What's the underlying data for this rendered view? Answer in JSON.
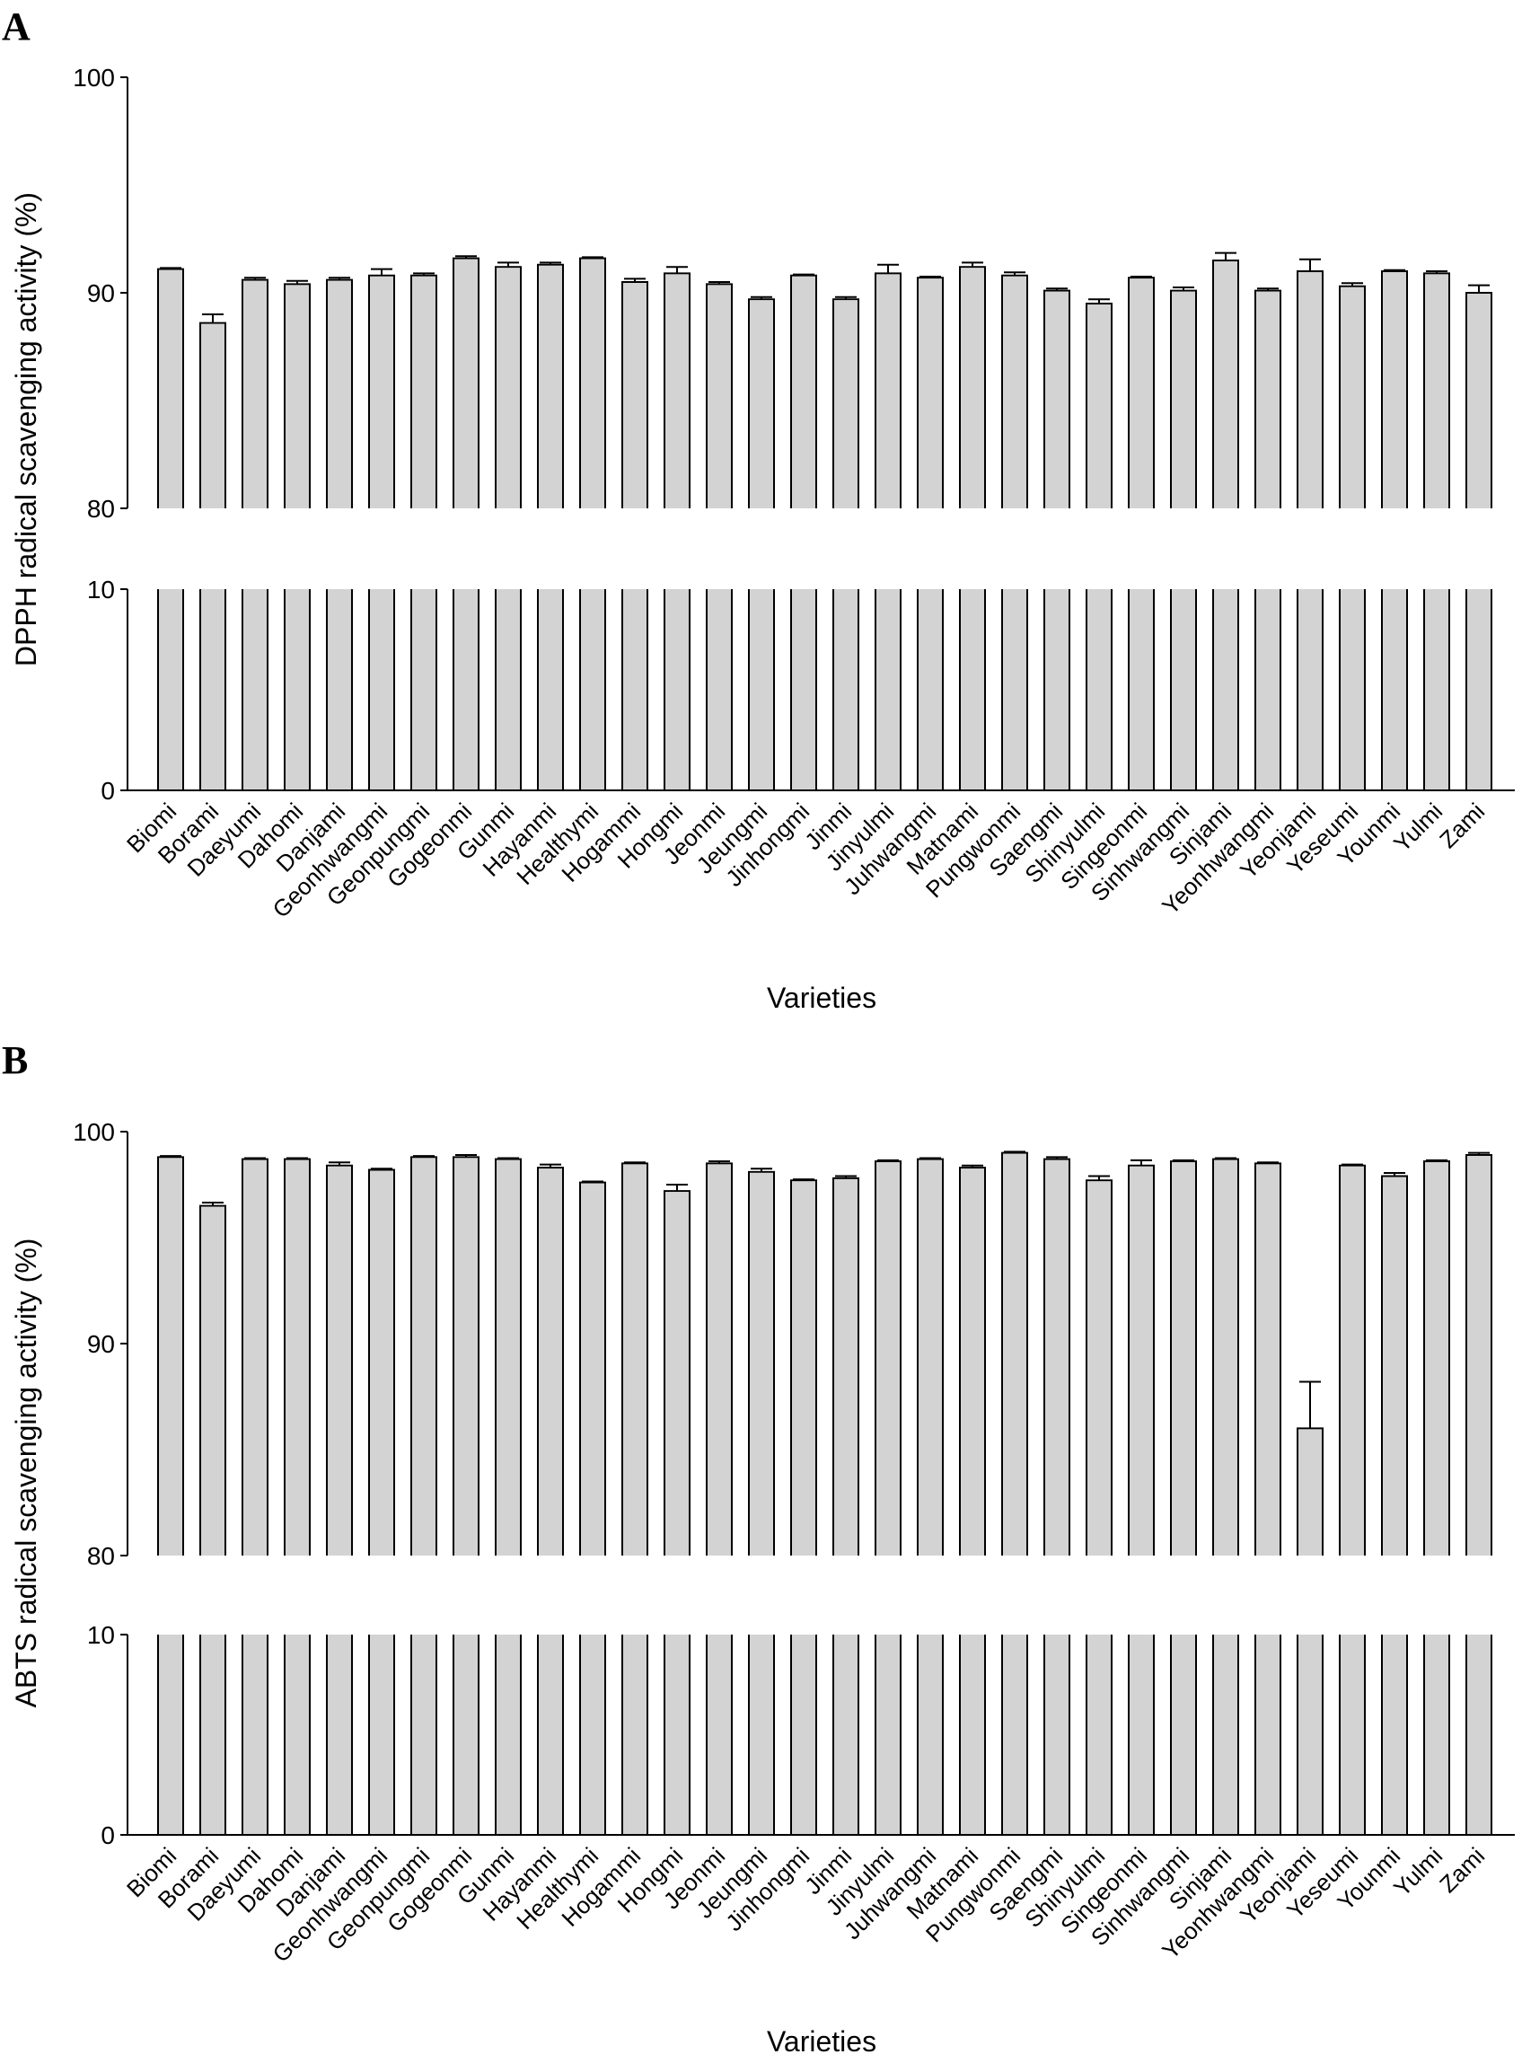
{
  "chart_data": [
    {
      "type": "bar",
      "panel": "A",
      "ylabel": "DPPH radical scavenging activity (%)",
      "xlabel": "Varieties",
      "axis_break": true,
      "upper_segment": {
        "ylim": [
          80,
          100
        ],
        "ticks": [
          "80",
          "90",
          "100"
        ]
      },
      "lower_segment": {
        "ylim": [
          0,
          10
        ],
        "ticks": [
          "0",
          "10"
        ]
      },
      "categories": [
        "Biomi",
        "Borami",
        "Daeyumi",
        "Dahomi",
        "Danjami",
        "Geonhwangmi",
        "Geonpungmi",
        "Gogeonmi",
        "Gunmi",
        "Hayanmi",
        "Healthymi",
        "Hogammi",
        "Hongmi",
        "Jeonmi",
        "Jeungmi",
        "Jinhongmi",
        "Jinmi",
        "Jinyulmi",
        "Juhwangmi",
        "Matnami",
        "Pungwonmi",
        "Saengmi",
        "Shinyulmi",
        "Singeonmi",
        "Sinhwangmi",
        "Sinjami",
        "Yeonhwangmi",
        "Yeonjami",
        "Yeseumi",
        "Younmi",
        "Yulmi",
        "Zami"
      ],
      "values": [
        91.1,
        88.6,
        90.6,
        90.4,
        90.6,
        90.8,
        90.8,
        91.6,
        91.2,
        91.3,
        91.6,
        90.5,
        90.9,
        90.4,
        89.7,
        90.8,
        89.7,
        90.9,
        90.7,
        91.2,
        90.8,
        90.1,
        89.5,
        90.7,
        90.1,
        91.5,
        90.1,
        91.0,
        90.3,
        91.0,
        90.9,
        90.0
      ],
      "errors": [
        0.05,
        0.4,
        0.1,
        0.15,
        0.1,
        0.3,
        0.1,
        0.1,
        0.2,
        0.1,
        0.05,
        0.15,
        0.3,
        0.1,
        0.1,
        0.05,
        0.1,
        0.4,
        0.05,
        0.2,
        0.15,
        0.1,
        0.2,
        0.05,
        0.15,
        0.35,
        0.1,
        0.55,
        0.15,
        0.05,
        0.1,
        0.35
      ]
    },
    {
      "type": "bar",
      "panel": "B",
      "ylabel": "ABTS radical scavenging activity (%)",
      "xlabel": "Varieties",
      "axis_break": true,
      "upper_segment": {
        "ylim": [
          80,
          100
        ],
        "ticks": [
          "80",
          "90",
          "100"
        ]
      },
      "lower_segment": {
        "ylim": [
          0,
          10
        ],
        "ticks": [
          "0",
          "10"
        ]
      },
      "categories": [
        "Biomi",
        "Borami",
        "Daeyumi",
        "Dahomi",
        "Danjami",
        "Geonhwangmi",
        "Geonpungmi",
        "Gogeonmi",
        "Gunmi",
        "Hayanmi",
        "Healthymi",
        "Hogammi",
        "Hongmi",
        "Jeonmi",
        "Jeungmi",
        "Jinhongmi",
        "Jinmi",
        "Jinyulmi",
        "Juhwangmi",
        "Matnami",
        "Pungwonmi",
        "Saengmi",
        "Shinyulmi",
        "Singeonmi",
        "Sinhwangmi",
        "Sinjami",
        "Yeonhwangmi",
        "Yeonjami",
        "Yeseumi",
        "Younmi",
        "Yulmi",
        "Zami"
      ],
      "values": [
        98.8,
        96.5,
        98.7,
        98.7,
        98.4,
        98.2,
        98.8,
        98.8,
        98.7,
        98.3,
        97.6,
        98.5,
        97.2,
        98.5,
        98.1,
        97.7,
        97.8,
        98.6,
        98.7,
        98.3,
        99.0,
        98.7,
        97.7,
        98.4,
        98.6,
        98.7,
        98.5,
        86.0,
        98.4,
        97.9,
        98.6,
        98.9
      ],
      "errors": [
        0.05,
        0.15,
        0.05,
        0.05,
        0.15,
        0.05,
        0.05,
        0.1,
        0.05,
        0.15,
        0.05,
        0.05,
        0.3,
        0.1,
        0.15,
        0.05,
        0.1,
        0.05,
        0.05,
        0.1,
        0.05,
        0.1,
        0.2,
        0.25,
        0.05,
        0.05,
        0.05,
        2.2,
        0.05,
        0.15,
        0.05,
        0.1
      ]
    }
  ]
}
